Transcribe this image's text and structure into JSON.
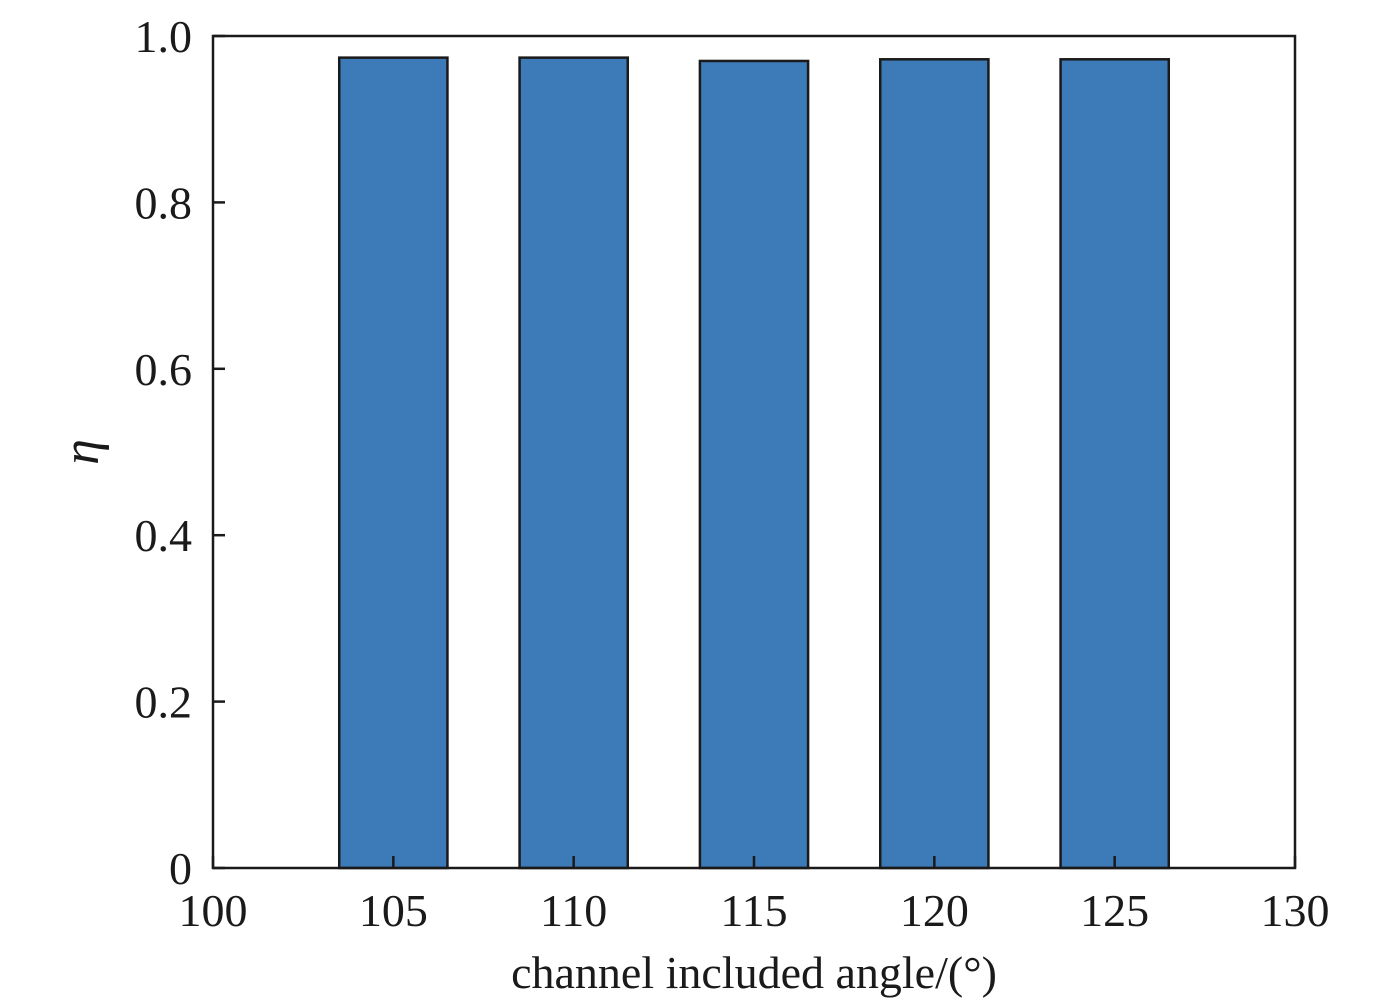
{
  "chart_data": {
    "type": "bar",
    "x": [
      105,
      110,
      115,
      120,
      125
    ],
    "values": [
      0.974,
      0.974,
      0.97,
      0.972,
      0.972
    ],
    "xlabel": "channel included angle/(°)",
    "ylabel": "η",
    "xlim": [
      100,
      130
    ],
    "ylim": [
      0,
      1.0
    ],
    "xticks": [
      100,
      105,
      110,
      115,
      120,
      125,
      130
    ],
    "xtick_labels": [
      "100",
      "105",
      "110",
      "115",
      "120",
      "125",
      "130"
    ],
    "yticks": [
      0,
      0.2,
      0.4,
      0.6,
      0.8,
      1.0
    ],
    "ytick_labels": [
      "0",
      "0.2",
      "0.4",
      "0.6",
      "0.8",
      "1.0"
    ],
    "bar_width": 3,
    "bar_color": "#3d7ab8",
    "bar_edge_color": "#1a1a1a",
    "grid": false,
    "legend": "none"
  }
}
